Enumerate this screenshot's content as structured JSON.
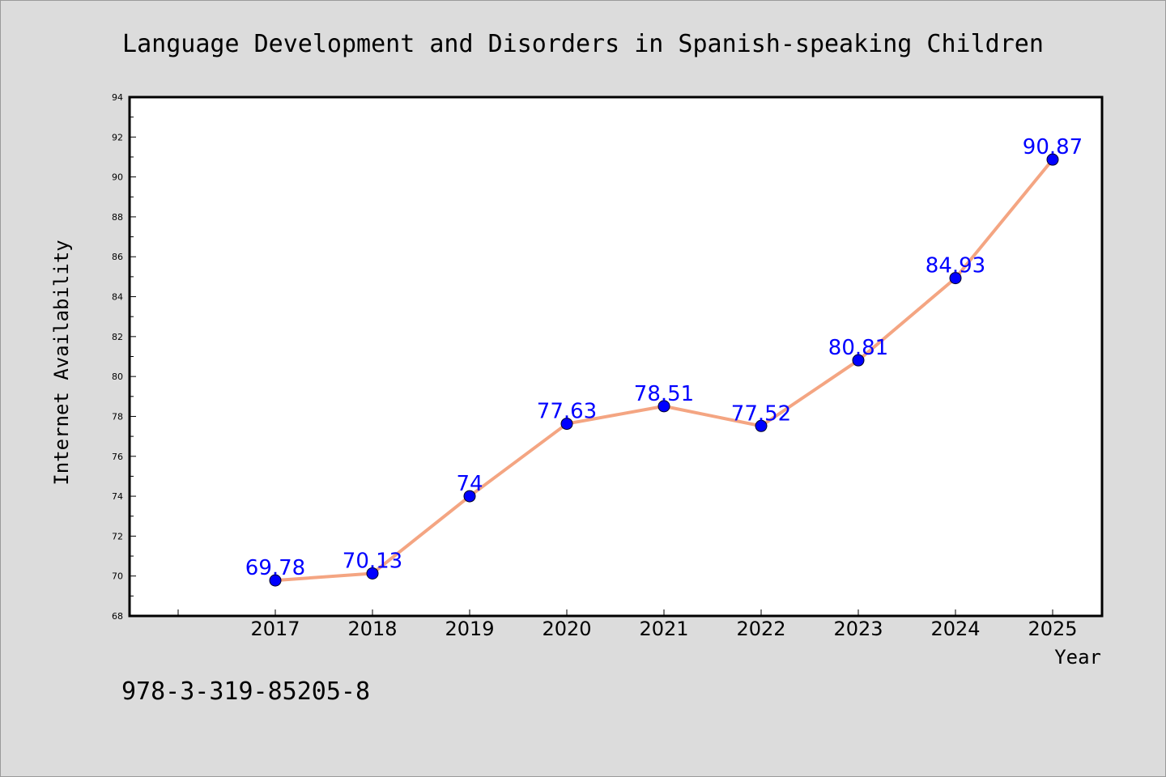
{
  "chart_data": {
    "type": "line",
    "title": "Language Development and Disorders in Spanish-speaking Children",
    "xlabel": "Year",
    "ylabel": "Internet Availability",
    "categories": [
      "2017",
      "2018",
      "2019",
      "2020",
      "2021",
      "2022",
      "2023",
      "2024",
      "2025"
    ],
    "series": [
      {
        "values": [
          69.78,
          70.13,
          74,
          77.63,
          78.51,
          77.52,
          80.81,
          84.93,
          90.87
        ],
        "labels": [
          "69.78",
          "70.13",
          "74",
          "77.63",
          "78.51",
          "77.52",
          "80.81",
          "84.93",
          "90.87"
        ],
        "line_color": "#f4a582",
        "marker_color": "#0000ff"
      }
    ],
    "ylim": [
      68,
      94
    ],
    "yticks": [
      "68",
      "70",
      "72",
      "74",
      "76",
      "78",
      "80",
      "82",
      "84",
      "86",
      "88",
      "90",
      "92",
      "94"
    ],
    "grid": false,
    "legend": "none"
  },
  "footer": {
    "isbn": "978-3-319-85205-8"
  }
}
